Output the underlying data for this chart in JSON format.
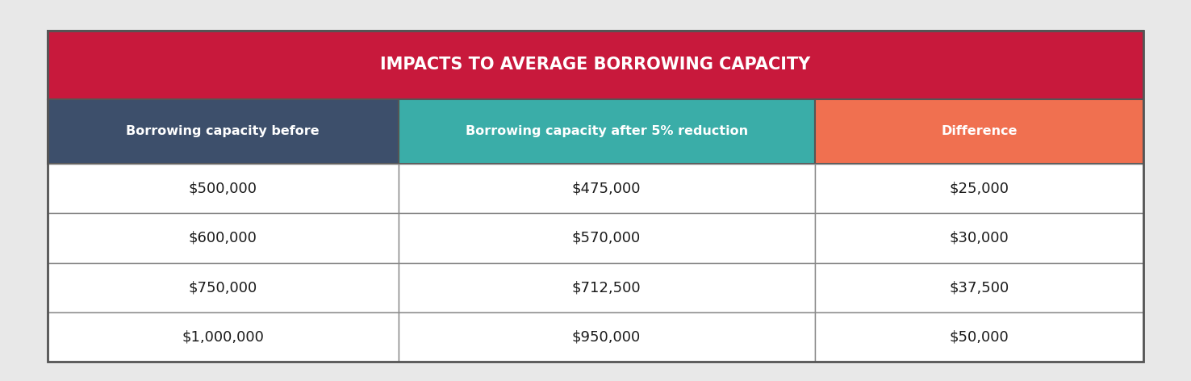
{
  "title": "IMPACTS TO AVERAGE BORROWING CAPACITY",
  "title_bg_color": "#C8193C",
  "title_text_color": "#FFFFFF",
  "col_headers": [
    "Borrowing capacity before",
    "Borrowing capacity after 5% reduction",
    "Difference"
  ],
  "col_header_bg_colors": [
    "#3D4F6B",
    "#3AADA8",
    "#F07050"
  ],
  "col_header_text_color": "#FFFFFF",
  "rows": [
    [
      "$500,000",
      "$475,000",
      "$25,000"
    ],
    [
      "$600,000",
      "$570,000",
      "$30,000"
    ],
    [
      "$750,000",
      "$712,500",
      "$37,500"
    ],
    [
      "$1,000,000",
      "$950,000",
      "$50,000"
    ]
  ],
  "row_bg_color": "#FFFFFF",
  "row_text_color": "#1A1A1A",
  "border_color": "#888888",
  "outer_border_color": "#555555",
  "background_color": "#F0F0F0",
  "fig_bg_color": "#E8E8E8"
}
